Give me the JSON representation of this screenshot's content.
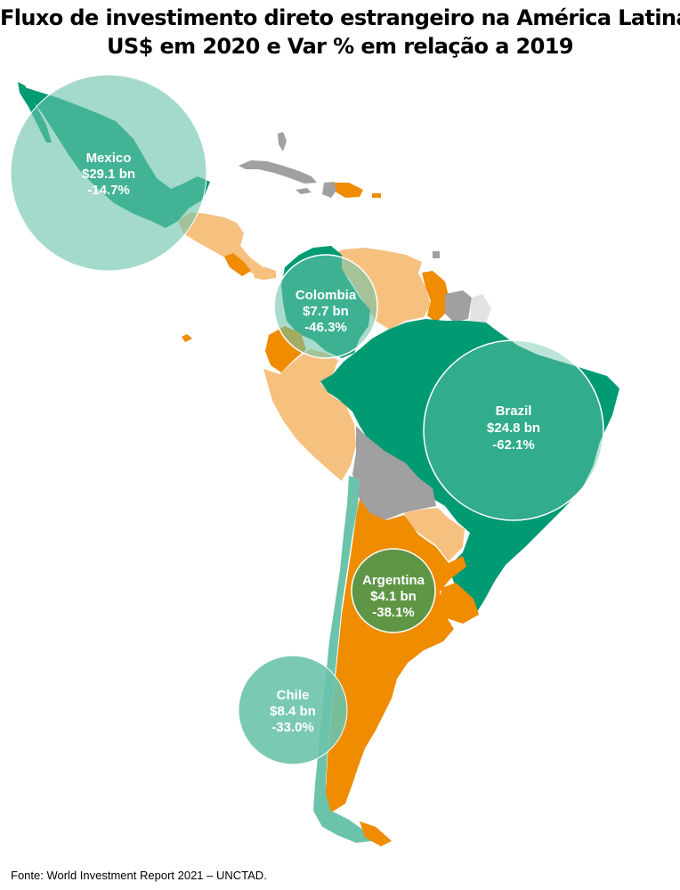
{
  "title": {
    "line1": "Fluxo de investimento direto estrangeiro na América Latina",
    "line2": "US$ em 2020 e Var % em relação a 2019"
  },
  "source": "Fonte: World Investment Report 2021 – UNCTAD.",
  "colors": {
    "dark_green": "#009a73",
    "light_teal": "#6cc3ab",
    "orange": "#ef8c00",
    "light_orange": "#f6c07f",
    "gray": "#a0a0a0",
    "light_gray": "#e2e2e2",
    "olive_green": "#5f9646",
    "bubble_fill": "#6cc3ab"
  },
  "bubbles": [
    {
      "country": "Mexico",
      "amount": "$29.1 bn",
      "change": "-14.7%"
    },
    {
      "country": "Colombia",
      "amount": "$7.7 bn",
      "change": "-46.3%"
    },
    {
      "country": "Brazil",
      "amount": "$24.8 bn",
      "change": "-62.1%"
    },
    {
      "country": "Argentina",
      "amount": "$4.1 bn",
      "change": "-38.1%"
    },
    {
      "country": "Chile",
      "amount": "$8.4 bn",
      "change": "-33.0%"
    }
  ]
}
